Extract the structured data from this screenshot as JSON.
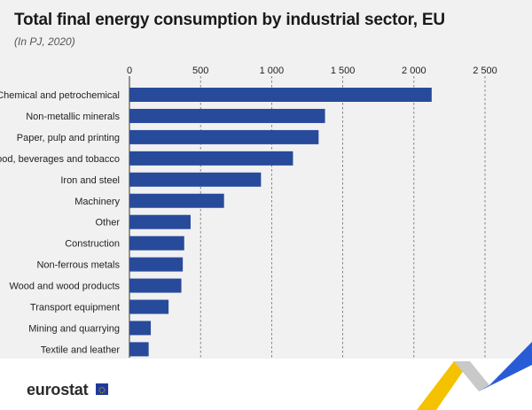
{
  "title": "Total final energy consumption by industrial sector, EU",
  "subtitle": "(In PJ, 2020)",
  "footer": {
    "logo_text": "eurostat"
  },
  "colors": {
    "bar": "#274a9b",
    "background": "#f1f1f1",
    "gridline": "#666666",
    "accent_yellow": "#f4c200",
    "accent_blue": "#2a5bd7"
  },
  "icons": {
    "eu_flag": "eu-flag-icon"
  },
  "chart_data": {
    "type": "bar",
    "orientation": "horizontal",
    "categories": [
      "Chemical and petrochemical",
      "Non-metallic minerals",
      "Paper, pulp and printing",
      "Food, beverages and tobacco",
      "Iron and steel",
      "Machinery",
      "Other",
      "Construction",
      "Non-ferrous metals",
      "Wood and wood products",
      "Transport equipment",
      "Mining and quarrying",
      "Textile and leather"
    ],
    "values": [
      2125,
      1375,
      1330,
      1150,
      925,
      665,
      430,
      385,
      375,
      365,
      275,
      150,
      135
    ],
    "xlim": [
      0,
      2500
    ],
    "ticks": [
      0,
      500,
      1000,
      1500,
      2000,
      2500
    ],
    "tick_labels": [
      "0",
      "500",
      "1 000",
      "1 500",
      "2 000",
      "2 500"
    ],
    "axis_position": "top",
    "grid": true,
    "legend": "none"
  }
}
